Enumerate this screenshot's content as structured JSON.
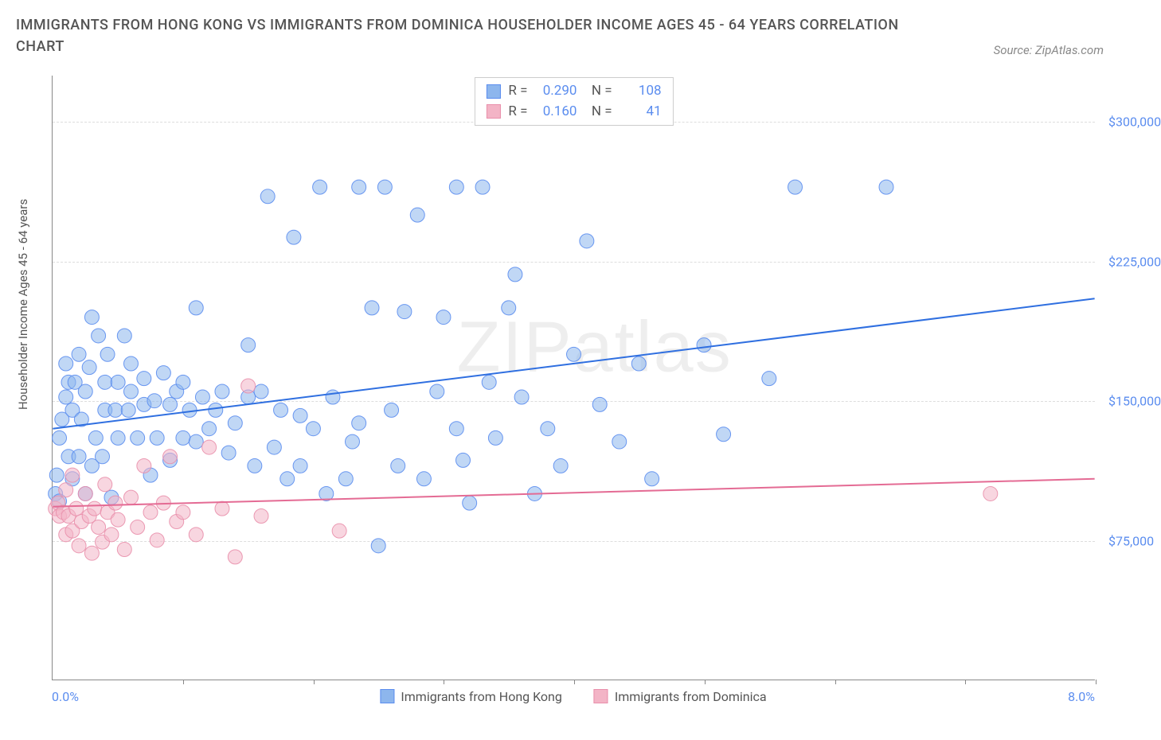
{
  "title": "IMMIGRANTS FROM HONG KONG VS IMMIGRANTS FROM DOMINICA HOUSEHOLDER INCOME AGES 45 - 64 YEARS CORRELATION CHART",
  "source": "Source: ZipAtlas.com",
  "watermark": "ZIPatlas",
  "ylabel": "Householder Income Ages 45 - 64 years",
  "chart": {
    "type": "scatter",
    "xlim": [
      0,
      8
    ],
    "ylim": [
      0,
      325000
    ],
    "xticks": [
      1,
      2,
      3,
      4,
      5,
      6,
      7,
      8
    ],
    "yticks": [
      75000,
      150000,
      225000,
      300000
    ],
    "ytick_labels": [
      "$75,000",
      "$150,000",
      "$225,000",
      "$300,000"
    ],
    "xmin_label": "0.0%",
    "xmax_label": "8.0%",
    "background_color": "#ffffff",
    "grid_color": "#dddddd",
    "axis_color": "#888888",
    "tick_label_color": "#5b8def",
    "marker_radius": 9,
    "marker_opacity": 0.55,
    "marker_stroke_opacity": 0.9,
    "line_width": 2
  },
  "series": [
    {
      "name": "Immigrants from Hong Kong",
      "color_fill": "#8db6ed",
      "color_stroke": "#5b8def",
      "line_color": "#2f6fe0",
      "R": "0.290",
      "N": "108",
      "trend": {
        "x1": 0.0,
        "y1": 135000,
        "x2": 8.0,
        "y2": 205000
      },
      "points": [
        [
          0.02,
          100000
        ],
        [
          0.03,
          110000
        ],
        [
          0.05,
          96000
        ],
        [
          0.05,
          130000
        ],
        [
          0.07,
          140000
        ],
        [
          0.1,
          170000
        ],
        [
          0.1,
          152000
        ],
        [
          0.12,
          120000
        ],
        [
          0.12,
          160000
        ],
        [
          0.15,
          145000
        ],
        [
          0.15,
          108000
        ],
        [
          0.17,
          160000
        ],
        [
          0.2,
          175000
        ],
        [
          0.2,
          120000
        ],
        [
          0.22,
          140000
        ],
        [
          0.25,
          100000
        ],
        [
          0.25,
          155000
        ],
        [
          0.28,
          168000
        ],
        [
          0.3,
          195000
        ],
        [
          0.3,
          115000
        ],
        [
          0.33,
          130000
        ],
        [
          0.35,
          185000
        ],
        [
          0.38,
          120000
        ],
        [
          0.4,
          160000
        ],
        [
          0.4,
          145000
        ],
        [
          0.42,
          175000
        ],
        [
          0.45,
          98000
        ],
        [
          0.48,
          145000
        ],
        [
          0.5,
          160000
        ],
        [
          0.5,
          130000
        ],
        [
          0.55,
          185000
        ],
        [
          0.58,
          145000
        ],
        [
          0.6,
          155000
        ],
        [
          0.6,
          170000
        ],
        [
          0.65,
          130000
        ],
        [
          0.7,
          162000
        ],
        [
          0.7,
          148000
        ],
        [
          0.75,
          110000
        ],
        [
          0.78,
          150000
        ],
        [
          0.8,
          130000
        ],
        [
          0.85,
          165000
        ],
        [
          0.9,
          148000
        ],
        [
          0.9,
          118000
        ],
        [
          0.95,
          155000
        ],
        [
          1.0,
          160000
        ],
        [
          1.0,
          130000
        ],
        [
          1.05,
          145000
        ],
        [
          1.1,
          200000
        ],
        [
          1.1,
          128000
        ],
        [
          1.15,
          152000
        ],
        [
          1.2,
          135000
        ],
        [
          1.25,
          145000
        ],
        [
          1.3,
          155000
        ],
        [
          1.35,
          122000
        ],
        [
          1.4,
          138000
        ],
        [
          1.5,
          152000
        ],
        [
          1.5,
          180000
        ],
        [
          1.55,
          115000
        ],
        [
          1.6,
          155000
        ],
        [
          1.65,
          260000
        ],
        [
          1.7,
          125000
        ],
        [
          1.75,
          145000
        ],
        [
          1.8,
          108000
        ],
        [
          1.85,
          238000
        ],
        [
          1.9,
          142000
        ],
        [
          1.9,
          115000
        ],
        [
          2.0,
          135000
        ],
        [
          2.05,
          265000
        ],
        [
          2.1,
          100000
        ],
        [
          2.15,
          152000
        ],
        [
          2.25,
          108000
        ],
        [
          2.3,
          128000
        ],
        [
          2.35,
          265000
        ],
        [
          2.35,
          138000
        ],
        [
          2.45,
          200000
        ],
        [
          2.5,
          72000
        ],
        [
          2.55,
          265000
        ],
        [
          2.6,
          145000
        ],
        [
          2.65,
          115000
        ],
        [
          2.7,
          198000
        ],
        [
          2.8,
          250000
        ],
        [
          2.85,
          108000
        ],
        [
          2.95,
          155000
        ],
        [
          3.0,
          195000
        ],
        [
          3.1,
          265000
        ],
        [
          3.1,
          135000
        ],
        [
          3.15,
          118000
        ],
        [
          3.2,
          95000
        ],
        [
          3.3,
          265000
        ],
        [
          3.35,
          160000
        ],
        [
          3.4,
          130000
        ],
        [
          3.5,
          200000
        ],
        [
          3.55,
          218000
        ],
        [
          3.6,
          152000
        ],
        [
          3.7,
          100000
        ],
        [
          3.8,
          135000
        ],
        [
          3.9,
          115000
        ],
        [
          4.0,
          175000
        ],
        [
          4.1,
          236000
        ],
        [
          4.2,
          148000
        ],
        [
          4.35,
          128000
        ],
        [
          4.5,
          170000
        ],
        [
          4.6,
          108000
        ],
        [
          5.0,
          180000
        ],
        [
          5.15,
          132000
        ],
        [
          5.5,
          162000
        ],
        [
          5.7,
          265000
        ],
        [
          6.4,
          265000
        ]
      ]
    },
    {
      "name": "Immigrants from Dominica",
      "color_fill": "#f3b4c6",
      "color_stroke": "#e98fab",
      "line_color": "#e46b94",
      "R": "0.160",
      "N": "41",
      "trend": {
        "x1": 0.0,
        "y1": 93000,
        "x2": 8.0,
        "y2": 108000
      },
      "points": [
        [
          0.02,
          92000
        ],
        [
          0.04,
          95000
        ],
        [
          0.05,
          88000
        ],
        [
          0.08,
          90000
        ],
        [
          0.1,
          102000
        ],
        [
          0.1,
          78000
        ],
        [
          0.12,
          88000
        ],
        [
          0.15,
          80000
        ],
        [
          0.15,
          110000
        ],
        [
          0.18,
          92000
        ],
        [
          0.2,
          72000
        ],
        [
          0.22,
          85000
        ],
        [
          0.25,
          100000
        ],
        [
          0.28,
          88000
        ],
        [
          0.3,
          68000
        ],
        [
          0.32,
          92000
        ],
        [
          0.35,
          82000
        ],
        [
          0.38,
          74000
        ],
        [
          0.4,
          105000
        ],
        [
          0.42,
          90000
        ],
        [
          0.45,
          78000
        ],
        [
          0.48,
          95000
        ],
        [
          0.5,
          86000
        ],
        [
          0.55,
          70000
        ],
        [
          0.6,
          98000
        ],
        [
          0.65,
          82000
        ],
        [
          0.7,
          115000
        ],
        [
          0.75,
          90000
        ],
        [
          0.8,
          75000
        ],
        [
          0.85,
          95000
        ],
        [
          0.9,
          120000
        ],
        [
          0.95,
          85000
        ],
        [
          1.0,
          90000
        ],
        [
          1.1,
          78000
        ],
        [
          1.2,
          125000
        ],
        [
          1.3,
          92000
        ],
        [
          1.4,
          66000
        ],
        [
          1.5,
          158000
        ],
        [
          1.6,
          88000
        ],
        [
          2.2,
          80000
        ],
        [
          7.2,
          100000
        ]
      ]
    }
  ],
  "legend_items": [
    {
      "label": "Immigrants from Hong Kong",
      "fill": "#8db6ed",
      "stroke": "#5b8def"
    },
    {
      "label": "Immigrants from Dominica",
      "fill": "#f3b4c6",
      "stroke": "#e98fab"
    }
  ]
}
